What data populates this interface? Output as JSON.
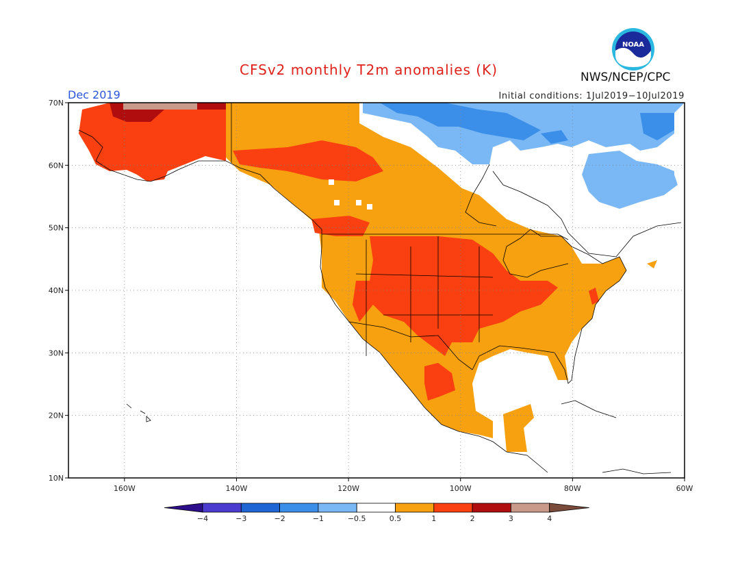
{
  "header": {
    "title": "CFSv2 monthly T2m anomalies (K)",
    "month": "Dec 2019",
    "initial_conditions": "Initial conditions: 1Jul2019−10Jul2019",
    "agency": "NWS/NCEP/CPC",
    "logo_text": "NOAA"
  },
  "map": {
    "lon_range": [
      -170,
      -60
    ],
    "lat_range": [
      10,
      70
    ],
    "lon_ticks": [
      "160W",
      "140W",
      "120W",
      "100W",
      "80W",
      "60W"
    ],
    "lon_tick_values": [
      -160,
      -140,
      -120,
      -100,
      -80,
      -60
    ],
    "lat_ticks": [
      "10N",
      "20N",
      "30N",
      "40N",
      "50N",
      "60N",
      "70N"
    ],
    "lat_tick_values": [
      10,
      20,
      30,
      40,
      50,
      60,
      70
    ],
    "grid": true,
    "colors": {
      "lt_-4": "#2d0f8c",
      "-4_-3": "#4b3ccf",
      "-3_-2": "#1f66d4",
      "-2_-1": "#3b8fe8",
      "-1_-0.5": "#7ab8f5",
      "-0.5_0.5": "#ffffff",
      "0.5_1": "#f7a010",
      "1_2": "#fa4010",
      "2_3": "#b00e0e",
      "3_4": "#c99a8a",
      "gt_4": "#7a4a3a"
    }
  },
  "colorbar": {
    "labels": [
      "−4",
      "−3",
      "−2",
      "−1",
      "−0.5",
      "0.5",
      "1",
      "2",
      "3",
      "4"
    ],
    "colors": [
      "#2d0f8c",
      "#4b3ccf",
      "#1f66d4",
      "#3b8fe8",
      "#7ab8f5",
      "#ffffff",
      "#f7a010",
      "#fa4010",
      "#b00e0e",
      "#c99a8a",
      "#7a4a3a"
    ]
  }
}
